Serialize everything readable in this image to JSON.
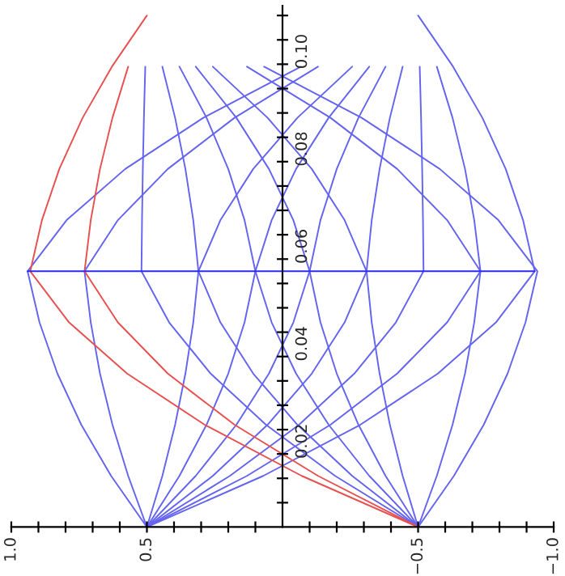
{
  "chart_data": {
    "type": "line",
    "grid": false,
    "legend": false,
    "marker": "none",
    "line_style": "solid",
    "xlim": [
      1.0,
      -1.0
    ],
    "xticks": [
      {
        "value": 1.0,
        "label": "1.0"
      },
      {
        "value": 0.9,
        "label": null
      },
      {
        "value": 0.8,
        "label": null
      },
      {
        "value": 0.7,
        "label": null
      },
      {
        "value": 0.6,
        "label": null
      },
      {
        "value": 0.5,
        "label": "0.5"
      },
      {
        "value": 0.4,
        "label": null
      },
      {
        "value": 0.3,
        "label": null
      },
      {
        "value": 0.2,
        "label": null
      },
      {
        "value": 0.1,
        "label": null
      },
      {
        "value": -0.1,
        "label": null
      },
      {
        "value": -0.2,
        "label": null
      },
      {
        "value": -0.3,
        "label": null
      },
      {
        "value": -0.4,
        "label": null
      },
      {
        "value": -0.5,
        "label": "−0.5"
      },
      {
        "value": -0.6,
        "label": null
      },
      {
        "value": -0.7,
        "label": null
      },
      {
        "value": -0.8,
        "label": null
      },
      {
        "value": -0.9,
        "label": null
      },
      {
        "value": -1.0,
        "label": "−1.0"
      }
    ],
    "ylim": [
      0,
      0.107
    ],
    "yticks": [
      {
        "value": 0.005,
        "label": null
      },
      {
        "value": 0.01,
        "label": null
      },
      {
        "value": 0.015,
        "label": null
      },
      {
        "value": 0.02,
        "label": "0.02"
      },
      {
        "value": 0.025,
        "label": null
      },
      {
        "value": 0.03,
        "label": null
      },
      {
        "value": 0.035,
        "label": null
      },
      {
        "value": 0.04,
        "label": "0.04"
      },
      {
        "value": 0.045,
        "label": null
      },
      {
        "value": 0.05,
        "label": null
      },
      {
        "value": 0.055,
        "label": null
      },
      {
        "value": 0.06,
        "label": "0.06"
      },
      {
        "value": 0.065,
        "label": null
      },
      {
        "value": 0.07,
        "label": null
      },
      {
        "value": 0.075,
        "label": null
      },
      {
        "value": 0.08,
        "label": "0.08"
      },
      {
        "value": 0.085,
        "label": null
      },
      {
        "value": 0.09,
        "label": null
      },
      {
        "value": 0.095,
        "label": null
      },
      {
        "value": 0.1,
        "label": "0.10"
      },
      {
        "value": 0.105,
        "label": null
      }
    ],
    "series": [
      {
        "color": "#6464f0",
        "x": [
          0.5,
          0.632,
          0.742,
          0.83,
          0.896,
          0.94,
          0.796,
          0.58,
          0.292,
          -0.068
        ],
        "values": [
          0,
          0.0105,
          0.021,
          0.0315,
          0.042,
          0.0525,
          0.063,
          0.0735,
          0.084,
          0.0945
        ]
      },
      {
        "color": "#6464f0",
        "x": [
          0.5,
          0.569,
          0.627,
          0.673,
          0.707,
          0.73,
          0.607,
          0.423,
          0.177,
          -0.131
        ],
        "values": [
          0,
          0.0105,
          0.021,
          0.0315,
          0.042,
          0.0525,
          0.063,
          0.0735,
          0.084,
          0.0945
        ]
      },
      {
        "color": "#6464f0",
        "x": [
          0.5,
          0.443,
          0.396,
          0.358,
          0.329,
          0.31,
          0.229,
          0.108,
          -0.055,
          -0.257
        ],
        "values": [
          0,
          0.0105,
          0.021,
          0.0315,
          0.042,
          0.0525,
          0.063,
          0.0735,
          0.084,
          0.0945
        ]
      },
      {
        "color": "#6464f0",
        "x": [
          0.5,
          0.38,
          0.28,
          0.2,
          0.14,
          0.1,
          0.04,
          -0.05,
          -0.17,
          -0.32
        ],
        "values": [
          0,
          0.0105,
          0.021,
          0.0315,
          0.042,
          0.0525,
          0.063,
          0.0735,
          0.084,
          0.0945
        ]
      },
      {
        "color": "#6464f0",
        "x": [
          0.5,
          0.32,
          0.17,
          0.05,
          -0.04,
          -0.1,
          -0.14,
          -0.2,
          -0.28,
          -0.38
        ],
        "values": [
          0,
          0.0105,
          0.021,
          0.0315,
          0.042,
          0.0525,
          0.063,
          0.0735,
          0.084,
          0.0945
        ]
      },
      {
        "color": "#6464f0",
        "x": [
          0.5,
          0.257,
          0.055,
          -0.108,
          -0.229,
          -0.31,
          -0.329,
          -0.358,
          -0.396,
          -0.443
        ],
        "values": [
          0,
          0.0105,
          0.021,
          0.0315,
          0.042,
          0.0525,
          0.063,
          0.0735,
          0.084,
          0.0945
        ]
      },
      {
        "color": "#6464f0",
        "x": [
          0.5,
          0.194,
          -0.061,
          -0.265,
          -0.418,
          -0.52,
          -0.518,
          -0.515,
          -0.511,
          -0.506
        ],
        "values": [
          0,
          0.0105,
          0.021,
          0.0315,
          0.042,
          0.0525,
          0.063,
          0.0735,
          0.084,
          0.0945
        ]
      },
      {
        "color": "#6464f0",
        "x": [
          0.5,
          0.131,
          -0.177,
          -0.423,
          -0.607,
          -0.73,
          -0.707,
          -0.673,
          -0.627,
          -0.569
        ],
        "values": [
          0,
          0.0105,
          0.021,
          0.0315,
          0.042,
          0.0525,
          0.063,
          0.0735,
          0.084,
          0.0945
        ]
      },
      {
        "color": "#6464f0",
        "x": [
          0.5,
          0.071,
          -0.287,
          -0.573,
          -0.787,
          -0.93,
          -0.887,
          -0.823,
          -0.737,
          -0.629,
          -0.5
        ],
        "values": [
          0,
          0.0105,
          0.021,
          0.0315,
          0.042,
          0.0525,
          0.063,
          0.0735,
          0.084,
          0.0945,
          0.105
        ]
      },
      {
        "color": "#6464f0",
        "x": [
          -0.5,
          -0.632,
          -0.742,
          -0.83,
          -0.896,
          -0.94,
          -0.796,
          -0.58,
          -0.292,
          0.068
        ],
        "values": [
          0,
          0.0105,
          0.021,
          0.0315,
          0.042,
          0.0525,
          0.063,
          0.0735,
          0.084,
          0.0945
        ]
      },
      {
        "color": "#6464f0",
        "x": [
          -0.5,
          -0.569,
          -0.627,
          -0.673,
          -0.707,
          -0.73,
          -0.607,
          -0.423,
          -0.177,
          0.131
        ],
        "values": [
          0,
          0.0105,
          0.021,
          0.0315,
          0.042,
          0.0525,
          0.063,
          0.0735,
          0.084,
          0.0945
        ]
      },
      {
        "color": "#6464f0",
        "x": [
          -0.5,
          -0.443,
          -0.396,
          -0.358,
          -0.329,
          -0.31,
          -0.229,
          -0.108,
          0.055,
          0.257
        ],
        "values": [
          0,
          0.0105,
          0.021,
          0.0315,
          0.042,
          0.0525,
          0.063,
          0.0735,
          0.084,
          0.0945
        ]
      },
      {
        "color": "#6464f0",
        "x": [
          -0.5,
          -0.38,
          -0.28,
          -0.2,
          -0.14,
          -0.1,
          -0.04,
          0.05,
          0.17,
          0.32
        ],
        "values": [
          0,
          0.0105,
          0.021,
          0.0315,
          0.042,
          0.0525,
          0.063,
          0.0735,
          0.084,
          0.0945
        ]
      },
      {
        "color": "#6464f0",
        "x": [
          -0.5,
          -0.32,
          -0.17,
          -0.05,
          0.04,
          0.1,
          0.14,
          0.2,
          0.28,
          0.38
        ],
        "values": [
          0,
          0.0105,
          0.021,
          0.0315,
          0.042,
          0.0525,
          0.063,
          0.0735,
          0.084,
          0.0945
        ]
      },
      {
        "color": "#6464f0",
        "x": [
          -0.5,
          -0.257,
          -0.055,
          0.108,
          0.229,
          0.31,
          0.329,
          0.358,
          0.396,
          0.443
        ],
        "values": [
          0,
          0.0105,
          0.021,
          0.0315,
          0.042,
          0.0525,
          0.063,
          0.0735,
          0.084,
          0.0945
        ]
      },
      {
        "color": "#6464f0",
        "x": [
          -0.5,
          -0.194,
          0.061,
          0.265,
          0.418,
          0.52,
          0.518,
          0.515,
          0.511,
          0.506
        ],
        "values": [
          0,
          0.0105,
          0.021,
          0.0315,
          0.042,
          0.0525,
          0.063,
          0.0735,
          0.084,
          0.0945
        ]
      },
      {
        "color": "#e85050",
        "x": [
          -0.5,
          -0.131,
          0.177,
          0.423,
          0.607,
          0.73,
          0.707,
          0.673,
          0.627,
          0.569
        ],
        "values": [
          0,
          0.0105,
          0.021,
          0.0315,
          0.042,
          0.0525,
          0.063,
          0.0735,
          0.084,
          0.0945
        ]
      },
      {
        "color": "#e85050",
        "x": [
          -0.5,
          -0.071,
          0.287,
          0.573,
          0.787,
          0.93,
          0.887,
          0.823,
          0.737,
          0.629,
          0.5
        ],
        "values": [
          0,
          0.0105,
          0.021,
          0.0315,
          0.042,
          0.0525,
          0.063,
          0.0735,
          0.084,
          0.0945,
          0.105
        ]
      },
      {
        "color": "#2a2af0",
        "x": [
          0.94,
          -0.93
        ],
        "values": [
          0.0525,
          0.0525
        ]
      }
    ]
  }
}
